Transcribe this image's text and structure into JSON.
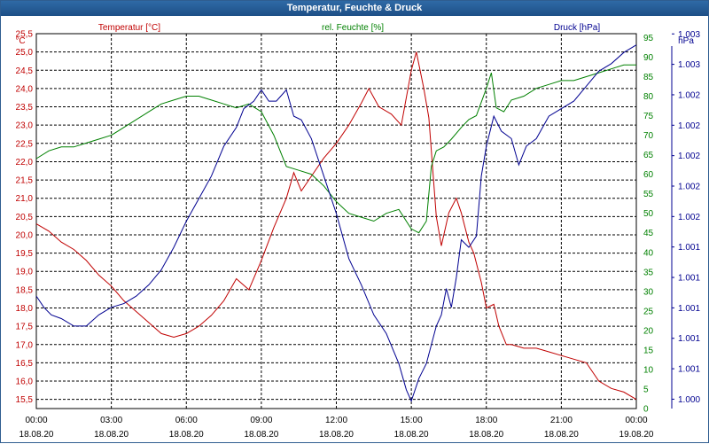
{
  "window": {
    "title": "Temperatur, Feuchte & Druck"
  },
  "colors": {
    "temperature": "#c00000",
    "humidity": "#008000",
    "pressure": "#000090",
    "axis_text": "#000000",
    "grid": "#000000",
    "title_bar": "#1d4f86"
  },
  "chart_data": {
    "type": "line",
    "title": "Temperatur, Feuchte & Druck",
    "grid": true,
    "legend_placement": "top (per-axis headers)",
    "x": {
      "unit": "time",
      "range_hours": [
        0,
        24
      ],
      "ticks": [
        {
          "time": "00:00",
          "date": "18.08.20"
        },
        {
          "time": "03:00",
          "date": "18.08.20"
        },
        {
          "time": "06:00",
          "date": "18.08.20"
        },
        {
          "time": "09:00",
          "date": "18.08.20"
        },
        {
          "time": "12:00",
          "date": "18.08.20"
        },
        {
          "time": "15:00",
          "date": "18.08.20"
        },
        {
          "time": "18:00",
          "date": "18.08.20"
        },
        {
          "time": "21:00",
          "date": "18.08.20"
        },
        {
          "time": "00:00",
          "date": "19.08.20"
        }
      ]
    },
    "axes": {
      "temperature": {
        "header": "Temperatur [°C]",
        "unit_label": "°C",
        "range": [
          15.25,
          25.5
        ],
        "ticks": [
          "15,5",
          "16,0",
          "16,5",
          "17,0",
          "17,5",
          "18,0",
          "18,5",
          "19,0",
          "19,5",
          "20,0",
          "20,5",
          "21,0",
          "21,5",
          "22,0",
          "22,5",
          "23,0",
          "23,5",
          "24,0",
          "24,5",
          "25,0",
          "25,5"
        ]
      },
      "humidity": {
        "header": "rel. Feuchte [%]",
        "range": [
          0,
          96
        ],
        "ticks": [
          "0",
          "5",
          "10",
          "15",
          "20",
          "25",
          "30",
          "35",
          "40",
          "45",
          "50",
          "55",
          "60",
          "65",
          "70",
          "75",
          "80",
          "85",
          "90",
          "95"
        ]
      },
      "pressure": {
        "header": "Druck [hPa]",
        "unit_label": "hPa",
        "range": [
          0,
          1
        ],
        "ticks": [
          "1.000",
          "1.001",
          "1.001",
          "1.001",
          "1.001",
          "1.001",
          "1.002",
          "1.002",
          "1.002",
          "1.002",
          "1.002",
          "1.003",
          "1.003"
        ]
      }
    },
    "series": [
      {
        "name": "Temperatur [°C]",
        "axis": "temperature",
        "points": [
          [
            0,
            20.3
          ],
          [
            0.5,
            20.1
          ],
          [
            1,
            19.8
          ],
          [
            1.5,
            19.6
          ],
          [
            2,
            19.3
          ],
          [
            2.5,
            18.9
          ],
          [
            3,
            18.6
          ],
          [
            3.5,
            18.2
          ],
          [
            4,
            17.9
          ],
          [
            4.5,
            17.6
          ],
          [
            5,
            17.3
          ],
          [
            5.5,
            17.2
          ],
          [
            6,
            17.3
          ],
          [
            6.5,
            17.5
          ],
          [
            7,
            17.8
          ],
          [
            7.5,
            18.2
          ],
          [
            8,
            18.8
          ],
          [
            8.5,
            18.5
          ],
          [
            9,
            19.3
          ],
          [
            9.5,
            20.2
          ],
          [
            10,
            21.0
          ],
          [
            10.3,
            21.7
          ],
          [
            10.6,
            21.2
          ],
          [
            11,
            21.6
          ],
          [
            11.5,
            22.1
          ],
          [
            12,
            22.5
          ],
          [
            12.5,
            23.0
          ],
          [
            13,
            23.6
          ],
          [
            13.3,
            24.0
          ],
          [
            13.7,
            23.5
          ],
          [
            14.2,
            23.3
          ],
          [
            14.6,
            23.0
          ],
          [
            15,
            24.5
          ],
          [
            15.2,
            25.0
          ],
          [
            15.5,
            24.0
          ],
          [
            15.7,
            23.2
          ],
          [
            16,
            20.5
          ],
          [
            16.2,
            19.7
          ],
          [
            16.5,
            20.6
          ],
          [
            16.8,
            21.0
          ],
          [
            17,
            20.6
          ],
          [
            17.3,
            19.8
          ],
          [
            17.5,
            19.5
          ],
          [
            17.8,
            18.7
          ],
          [
            18,
            18.0
          ],
          [
            18.3,
            18.1
          ],
          [
            18.5,
            17.5
          ],
          [
            18.8,
            17.0
          ],
          [
            19,
            17.0
          ],
          [
            19.5,
            16.9
          ],
          [
            20,
            16.9
          ],
          [
            20.5,
            16.8
          ],
          [
            21,
            16.7
          ],
          [
            21.5,
            16.6
          ],
          [
            22,
            16.5
          ],
          [
            22.5,
            16.0
          ],
          [
            23,
            15.8
          ],
          [
            23.5,
            15.7
          ],
          [
            24,
            15.5
          ]
        ]
      },
      {
        "name": "rel. Feuchte [%]",
        "axis": "humidity",
        "points": [
          [
            0,
            64
          ],
          [
            0.5,
            66
          ],
          [
            1,
            67
          ],
          [
            1.5,
            67
          ],
          [
            2,
            68
          ],
          [
            2.5,
            69
          ],
          [
            3,
            70
          ],
          [
            3.5,
            72
          ],
          [
            4,
            74
          ],
          [
            4.5,
            76
          ],
          [
            5,
            78
          ],
          [
            5.5,
            79
          ],
          [
            6,
            80
          ],
          [
            6.5,
            80
          ],
          [
            7,
            79
          ],
          [
            7.5,
            78
          ],
          [
            8,
            77
          ],
          [
            8.5,
            78
          ],
          [
            9,
            76
          ],
          [
            9.5,
            70
          ],
          [
            10,
            62
          ],
          [
            10.5,
            61
          ],
          [
            11,
            60
          ],
          [
            11.5,
            57
          ],
          [
            12,
            53
          ],
          [
            12.5,
            50
          ],
          [
            13,
            49
          ],
          [
            13.5,
            48
          ],
          [
            14,
            50
          ],
          [
            14.5,
            51
          ],
          [
            15,
            46
          ],
          [
            15.3,
            45
          ],
          [
            15.6,
            48
          ],
          [
            15.8,
            62
          ],
          [
            16,
            66
          ],
          [
            16.3,
            67
          ],
          [
            16.6,
            69
          ],
          [
            17,
            72
          ],
          [
            17.3,
            74
          ],
          [
            17.6,
            75
          ],
          [
            18,
            82
          ],
          [
            18.2,
            86
          ],
          [
            18.4,
            77
          ],
          [
            18.7,
            76
          ],
          [
            19,
            79
          ],
          [
            19.5,
            80
          ],
          [
            20,
            82
          ],
          [
            20.5,
            83
          ],
          [
            21,
            84
          ],
          [
            21.5,
            84
          ],
          [
            22,
            85
          ],
          [
            22.5,
            86
          ],
          [
            23,
            87
          ],
          [
            23.5,
            88
          ],
          [
            24,
            88
          ]
        ]
      },
      {
        "name": "Druck [hPa]",
        "axis": "pressure",
        "points": [
          [
            0,
            0.3
          ],
          [
            0.3,
            0.27
          ],
          [
            0.6,
            0.25
          ],
          [
            1,
            0.24
          ],
          [
            1.5,
            0.22
          ],
          [
            2,
            0.22
          ],
          [
            2.5,
            0.25
          ],
          [
            3,
            0.27
          ],
          [
            3.5,
            0.28
          ],
          [
            4,
            0.3
          ],
          [
            4.5,
            0.33
          ],
          [
            5,
            0.37
          ],
          [
            5.5,
            0.43
          ],
          [
            6,
            0.5
          ],
          [
            6.5,
            0.56
          ],
          [
            7,
            0.62
          ],
          [
            7.5,
            0.7
          ],
          [
            8,
            0.75
          ],
          [
            8.3,
            0.8
          ],
          [
            8.7,
            0.82
          ],
          [
            9,
            0.85
          ],
          [
            9.3,
            0.82
          ],
          [
            9.6,
            0.82
          ],
          [
            10,
            0.85
          ],
          [
            10.3,
            0.78
          ],
          [
            10.6,
            0.77
          ],
          [
            11,
            0.72
          ],
          [
            11.5,
            0.62
          ],
          [
            12,
            0.52
          ],
          [
            12.5,
            0.4
          ],
          [
            13,
            0.33
          ],
          [
            13.5,
            0.25
          ],
          [
            14,
            0.2
          ],
          [
            14.5,
            0.12
          ],
          [
            14.8,
            0.05
          ],
          [
            15,
            0.02
          ],
          [
            15.3,
            0.08
          ],
          [
            15.6,
            0.12
          ],
          [
            16,
            0.22
          ],
          [
            16.2,
            0.25
          ],
          [
            16.4,
            0.32
          ],
          [
            16.6,
            0.27
          ],
          [
            16.8,
            0.35
          ],
          [
            17,
            0.45
          ],
          [
            17.3,
            0.43
          ],
          [
            17.6,
            0.46
          ],
          [
            17.8,
            0.62
          ],
          [
            18,
            0.7
          ],
          [
            18.3,
            0.78
          ],
          [
            18.6,
            0.74
          ],
          [
            19,
            0.72
          ],
          [
            19.3,
            0.65
          ],
          [
            19.6,
            0.7
          ],
          [
            20,
            0.72
          ],
          [
            20.5,
            0.78
          ],
          [
            21,
            0.8
          ],
          [
            21.5,
            0.82
          ],
          [
            22,
            0.86
          ],
          [
            22.5,
            0.9
          ],
          [
            23,
            0.92
          ],
          [
            23.5,
            0.95
          ],
          [
            24,
            0.97
          ]
        ]
      }
    ]
  }
}
